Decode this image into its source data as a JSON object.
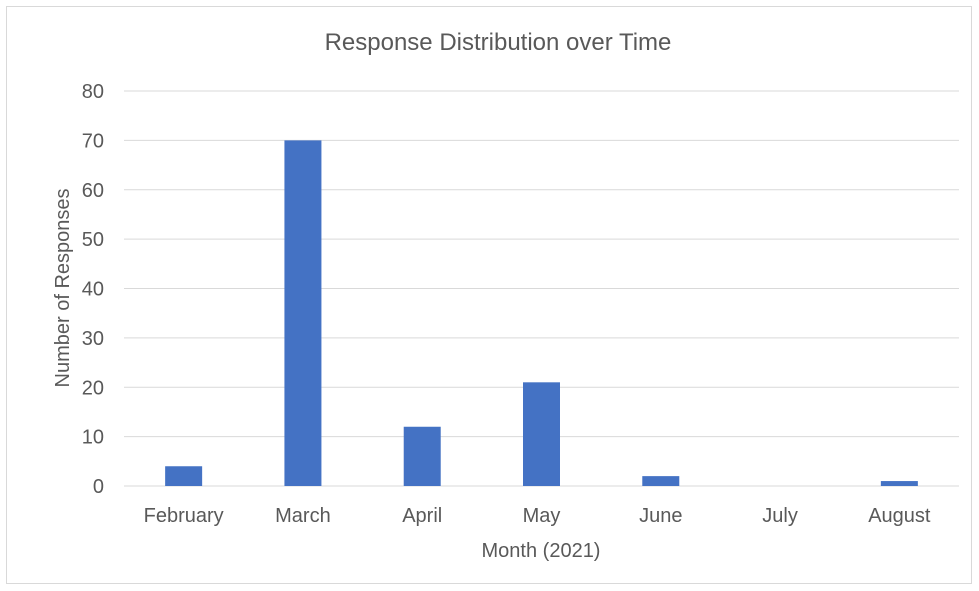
{
  "chart_data": {
    "type": "bar",
    "title": "Response Distribution over Time",
    "xlabel": "Month (2021)",
    "ylabel": "Number of Responses",
    "categories": [
      "February",
      "March",
      "April",
      "May",
      "June",
      "July",
      "August"
    ],
    "values": [
      4,
      70,
      12,
      21,
      2,
      0,
      1
    ],
    "ylim": [
      0,
      80
    ],
    "yticks": [
      0,
      10,
      20,
      30,
      40,
      50,
      60,
      70,
      80
    ],
    "grid": true,
    "legend": "none",
    "colors": {
      "bar": "#4472c4",
      "grid": "#d9d9d9",
      "text": "#595959"
    }
  }
}
